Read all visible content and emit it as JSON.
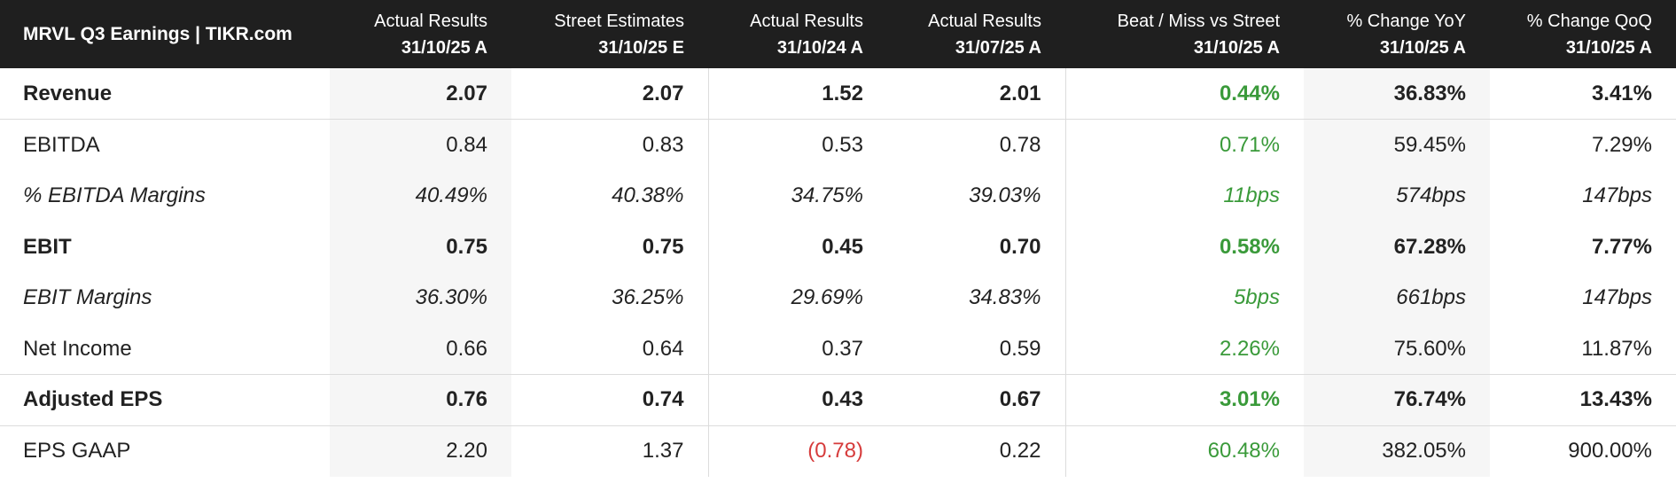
{
  "table": {
    "title": "MRVL Q3 Earnings | TIKR.com",
    "columns": [
      {
        "label": "Actual Results",
        "date": "31/10/25 A"
      },
      {
        "label": "Street Estimates",
        "date": "31/10/25 E"
      },
      {
        "label": "Actual Results",
        "date": "31/10/24 A"
      },
      {
        "label": "Actual Results",
        "date": "31/07/25 A"
      },
      {
        "label": "Beat / Miss vs Street",
        "date": "31/10/25 A"
      },
      {
        "label": "% Change YoY",
        "date": "31/10/25 A"
      },
      {
        "label": "% Change QoQ",
        "date": "31/10/25 A"
      }
    ],
    "rows": [
      {
        "label": "Revenue",
        "values": [
          "2.07",
          "2.07",
          "1.52",
          "2.01",
          "0.44%",
          "36.83%",
          "3.41%"
        ]
      },
      {
        "label": "EBITDA",
        "values": [
          "0.84",
          "0.83",
          "0.53",
          "0.78",
          "0.71%",
          "59.45%",
          "7.29%"
        ]
      },
      {
        "label": "% EBITDA Margins",
        "values": [
          "40.49%",
          "40.38%",
          "34.75%",
          "39.03%",
          "11bps",
          "574bps",
          "147bps"
        ]
      },
      {
        "label": "EBIT",
        "values": [
          "0.75",
          "0.75",
          "0.45",
          "0.70",
          "0.58%",
          "67.28%",
          "7.77%"
        ]
      },
      {
        "label": "EBIT Margins",
        "values": [
          "36.30%",
          "36.25%",
          "29.69%",
          "34.83%",
          "5bps",
          "661bps",
          "147bps"
        ]
      },
      {
        "label": "Net Income",
        "values": [
          "0.66",
          "0.64",
          "0.37",
          "0.59",
          "2.26%",
          "75.60%",
          "11.87%"
        ]
      },
      {
        "label": "Adjusted EPS",
        "values": [
          "0.76",
          "0.74",
          "0.43",
          "0.67",
          "3.01%",
          "76.74%",
          "13.43%"
        ]
      },
      {
        "label": "EPS GAAP",
        "values": [
          "2.20",
          "1.37",
          "(0.78)",
          "0.22",
          "60.48%",
          "382.05%",
          "900.00%"
        ]
      }
    ]
  },
  "colors": {
    "header_bg": "#1f1f1f",
    "positive": "#3a9a3a",
    "negative": "#d63b3b",
    "shade": "#f6f6f6"
  }
}
